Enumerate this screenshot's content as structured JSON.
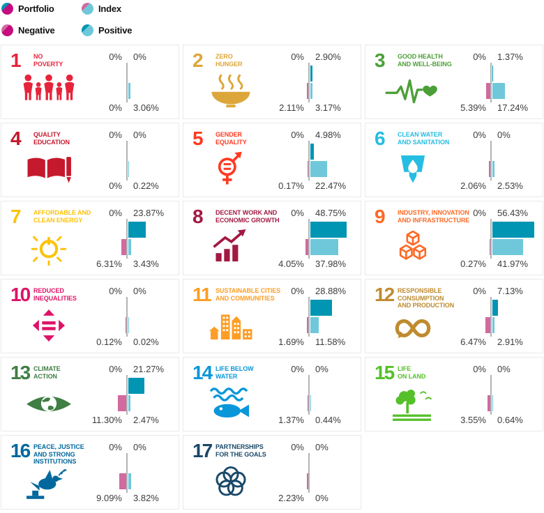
{
  "colors": {
    "portfolio_positive": "#0095B3",
    "portfolio_negative": "#C50D7F",
    "index_positive": "#6FC8DA",
    "index_negative": "#D2699F",
    "axis": "#B3B3B3"
  },
  "legend": {
    "items": [
      {
        "label": "Portfolio",
        "dot_colors": [
          "portfolio_positive",
          "portfolio_negative"
        ]
      },
      {
        "label": "Index",
        "dot_colors": [
          "index_negative",
          "index_positive"
        ]
      },
      {
        "label": "Negative",
        "dot_colors": [
          "index_negative",
          "portfolio_negative"
        ]
      },
      {
        "label": "Positive",
        "dot_colors": [
          "portfolio_positive",
          "index_positive"
        ]
      }
    ]
  },
  "chart_data": {
    "type": "bar",
    "orientation": "horizontal-diverging",
    "unit": "%",
    "axis": "negative values extend left, positive values extend right",
    "series_order": [
      "portfolio_negative",
      "portfolio_positive",
      "index_negative",
      "index_positive"
    ],
    "goals": [
      {
        "number": "1",
        "title_lines": [
          "NO",
          "POVERTY"
        ],
        "color": "#E5243B",
        "icon": "people-icon",
        "values": [
          0,
          0,
          0,
          3.06
        ],
        "labels": [
          "0%",
          "0%",
          "0%",
          "3.06%"
        ]
      },
      {
        "number": "2",
        "title_lines": [
          "ZERO",
          "HUNGER"
        ],
        "color": "#DDA63A",
        "icon": "bowl-icon",
        "values": [
          0,
          2.9,
          2.11,
          3.17
        ],
        "labels": [
          "0%",
          "2.90%",
          "2.11%",
          "3.17%"
        ]
      },
      {
        "number": "3",
        "title_lines": [
          "GOOD HEALTH",
          "AND WELL-BEING"
        ],
        "color": "#4C9F38",
        "icon": "heartbeat-icon",
        "values": [
          0,
          1.37,
          5.39,
          17.24
        ],
        "labels": [
          "0%",
          "1.37%",
          "5.39%",
          "17.24%"
        ]
      },
      {
        "number": "4",
        "title_lines": [
          "QUALITY",
          "EDUCATION"
        ],
        "color": "#C5192D",
        "icon": "book-pencil-icon",
        "values": [
          0,
          0,
          0,
          0.22
        ],
        "labels": [
          "0%",
          "0%",
          "0%",
          "0.22%"
        ]
      },
      {
        "number": "5",
        "title_lines": [
          "GENDER",
          "EQUALITY"
        ],
        "color": "#FF3A21",
        "icon": "gender-symbol-icon",
        "values": [
          0,
          4.98,
          0.17,
          22.47
        ],
        "labels": [
          "0%",
          "4.98%",
          "0.17%",
          "22.47%"
        ]
      },
      {
        "number": "6",
        "title_lines": [
          "CLEAN WATER",
          "AND SANITATION"
        ],
        "color": "#26BDE2",
        "icon": "water-drop-icon",
        "values": [
          0,
          0,
          2.06,
          2.53
        ],
        "labels": [
          "0%",
          "0%",
          "2.06%",
          "2.53%"
        ]
      },
      {
        "number": "7",
        "title_lines": [
          "AFFORDABLE AND",
          "CLEAN ENERGY"
        ],
        "color": "#FCC30B",
        "icon": "sun-power-icon",
        "values": [
          0,
          23.87,
          6.31,
          3.43
        ],
        "labels": [
          "0%",
          "23.87%",
          "6.31%",
          "3.43%"
        ]
      },
      {
        "number": "8",
        "title_lines": [
          "DECENT WORK AND",
          "ECONOMIC GROWTH"
        ],
        "color": "#A21942",
        "icon": "growth-chart-icon",
        "values": [
          0,
          48.75,
          4.05,
          37.98
        ],
        "labels": [
          "0%",
          "48.75%",
          "4.05%",
          "37.98%"
        ]
      },
      {
        "number": "9",
        "title_lines": [
          "INDUSTRY, INNOVATION",
          "AND INFRASTRUCTURE"
        ],
        "color": "#FD6925",
        "icon": "cubes-icon",
        "values": [
          0,
          56.43,
          0.27,
          41.97
        ],
        "labels": [
          "0%",
          "56.43%",
          "0.27%",
          "41.97%"
        ]
      },
      {
        "number": "10",
        "title_lines": [
          "REDUCED",
          "INEQUALITIES"
        ],
        "color": "#DD1367",
        "icon": "equality-arrows-icon",
        "values": [
          0,
          0,
          0.12,
          0.02
        ],
        "labels": [
          "0%",
          "0%",
          "0.12%",
          "0.02%"
        ]
      },
      {
        "number": "11",
        "title_lines": [
          "SUSTAINABLE CITIES",
          "AND COMMUNITIES"
        ],
        "color": "#FD9D24",
        "icon": "city-buildings-icon",
        "values": [
          0,
          28.88,
          1.69,
          11.58
        ],
        "labels": [
          "0%",
          "28.88%",
          "1.69%",
          "11.58%"
        ]
      },
      {
        "number": "12",
        "title_lines": [
          "RESPONSIBLE",
          "CONSUMPTION",
          "AND PRODUCTION"
        ],
        "color": "#BF8B2E",
        "icon": "infinity-loop-icon",
        "values": [
          0,
          7.13,
          6.47,
          2.91
        ],
        "labels": [
          "0%",
          "7.13%",
          "6.47%",
          "2.91%"
        ]
      },
      {
        "number": "13",
        "title_lines": [
          "CLIMATE",
          "ACTION"
        ],
        "color": "#3F7E44",
        "icon": "eye-globe-icon",
        "values": [
          0,
          21.27,
          11.3,
          2.47
        ],
        "labels": [
          "0%",
          "21.27%",
          "11.30%",
          "2.47%"
        ]
      },
      {
        "number": "14",
        "title_lines": [
          "LIFE BELOW",
          "WATER"
        ],
        "color": "#0A97D9",
        "icon": "fish-waves-icon",
        "values": [
          0,
          0,
          1.37,
          0.44
        ],
        "labels": [
          "0%",
          "0%",
          "1.37%",
          "0.44%"
        ]
      },
      {
        "number": "15",
        "title_lines": [
          "LIFE",
          "ON LAND"
        ],
        "color": "#56C02B",
        "icon": "tree-birds-icon",
        "values": [
          0,
          0,
          3.55,
          0.64
        ],
        "labels": [
          "0%",
          "0%",
          "3.55%",
          "0.64%"
        ]
      },
      {
        "number": "16",
        "title_lines": [
          "PEACE, JUSTICE",
          "AND STRONG",
          "INSTITUTIONS"
        ],
        "color": "#00689D",
        "icon": "dove-gavel-icon",
        "values": [
          0,
          0,
          9.09,
          3.82
        ],
        "labels": [
          "0%",
          "0%",
          "9.09%",
          "3.82%"
        ]
      },
      {
        "number": "17",
        "title_lines": [
          "PARTNERSHIPS",
          "FOR THE GOALS"
        ],
        "color": "#19486A",
        "icon": "interlocking-rings-icon",
        "values": [
          0,
          0,
          2.23,
          0
        ],
        "labels": [
          "0%",
          "0%",
          "2.23%",
          "0%"
        ]
      }
    ]
  }
}
